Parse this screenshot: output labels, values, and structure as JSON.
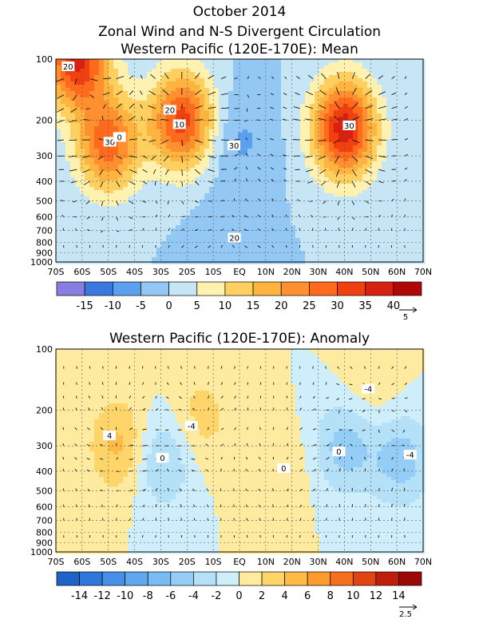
{
  "header": {
    "title": "October 2014",
    "subtitle": "Zonal Wind and N-S Divergent Circulation"
  },
  "chart_data": [
    {
      "type": "heatmap",
      "title": "Western Pacific (120E-170E): Mean",
      "xlabel": "",
      "ylabel": "",
      "x_ticks": [
        "70S",
        "60S",
        "50S",
        "40S",
        "30S",
        "20S",
        "10S",
        "EQ",
        "10N",
        "20N",
        "30N",
        "40N",
        "50N",
        "60N",
        "70N"
      ],
      "x_lim": [
        -70,
        70
      ],
      "y_ticks": [
        100,
        200,
        300,
        400,
        500,
        600,
        700,
        800,
        900,
        1000
      ],
      "y_lim": [
        1000,
        100
      ],
      "y_scale": "log",
      "grid": true,
      "contour_labels": [
        "20",
        "30",
        "20",
        "30",
        "30",
        "20",
        "10",
        "0"
      ],
      "colorbar": {
        "labels": [
          "-15",
          "-10",
          "-5",
          "0",
          "5",
          "10",
          "15",
          "20",
          "25",
          "30",
          "35",
          "40"
        ],
        "colors": [
          "#8a7de0",
          "#3a78e0",
          "#5aa0ee",
          "#93c8f4",
          "#c6e6f6",
          "#fff2b0",
          "#ffd060",
          "#ffb440",
          "#ff9030",
          "#ff6a1c",
          "#f04010",
          "#d82010",
          "#b00808"
        ],
        "vector_scale_label": "5"
      },
      "centers": [
        {
          "lat": -22,
          "p": 200,
          "u": 32
        },
        {
          "lat": -50,
          "p": 260,
          "u": 28
        },
        {
          "lat": -62,
          "p": 100,
          "u": 36
        },
        {
          "lat": 40,
          "p": 220,
          "u": 38
        },
        {
          "lat": 0,
          "p": 250,
          "u": -6
        },
        {
          "lat": -5,
          "p": 800,
          "u": -4
        }
      ]
    },
    {
      "type": "heatmap",
      "title": "Western Pacific (120E-170E): Anomaly",
      "xlabel": "",
      "ylabel": "",
      "x_ticks": [
        "70S",
        "60S",
        "50S",
        "40S",
        "30S",
        "20S",
        "10S",
        "EQ",
        "10N",
        "20N",
        "30N",
        "40N",
        "50N",
        "60N",
        "70N"
      ],
      "x_lim": [
        -70,
        70
      ],
      "y_ticks": [
        100,
        200,
        300,
        400,
        500,
        600,
        700,
        800,
        900,
        1000
      ],
      "y_lim": [
        1000,
        100
      ],
      "y_scale": "log",
      "grid": true,
      "contour_labels": [
        "4",
        "0",
        "-4",
        "0",
        "0",
        "-4",
        "-4"
      ],
      "colorbar": {
        "labels": [
          "-14",
          "-12",
          "-10",
          "-8",
          "-6",
          "-4",
          "-2",
          "0",
          "2",
          "4",
          "6",
          "8",
          "10",
          "12",
          "14"
        ],
        "colors": [
          "#1e64c8",
          "#2e78dc",
          "#4690e8",
          "#5ea8ef",
          "#78bcf3",
          "#94cdf6",
          "#b4e0f8",
          "#cdeefa",
          "#ffeba0",
          "#ffd56a",
          "#ffbb44",
          "#ff9a2c",
          "#f5701c",
          "#e04410",
          "#c01e0c",
          "#9a0808"
        ],
        "vector_scale_label": "2.5"
      },
      "centers": [
        {
          "lat": -45,
          "p": 300,
          "u": 5
        },
        {
          "lat": -30,
          "p": 350,
          "u": -5
        },
        {
          "lat": -15,
          "p": 220,
          "u": 3
        },
        {
          "lat": 15,
          "p": 400,
          "u": 2
        },
        {
          "lat": 40,
          "p": 300,
          "u": -5
        },
        {
          "lat": 62,
          "p": 350,
          "u": -5
        },
        {
          "lat": 50,
          "p": 150,
          "u": 2
        }
      ]
    }
  ]
}
